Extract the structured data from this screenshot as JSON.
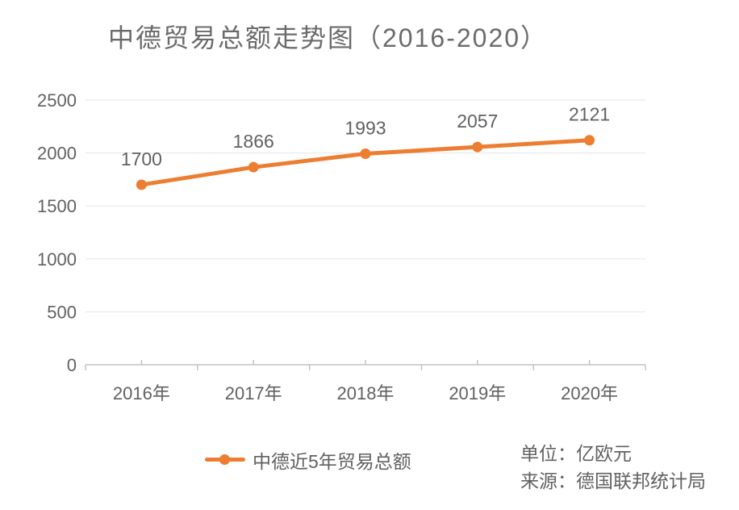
{
  "title": "中德贸易总额走势图（2016-2020）",
  "chart_data": {
    "type": "line",
    "title": "中德贸易总额走势图（2016-2020）",
    "categories": [
      "2016年",
      "2017年",
      "2018年",
      "2019年",
      "2020年"
    ],
    "series": [
      {
        "name": "中德近5年贸易总额",
        "values": [
          1700,
          1866,
          1993,
          2057,
          2121
        ]
      }
    ],
    "y_ticks": [
      0,
      500,
      1000,
      1500,
      2000,
      2500
    ],
    "ylim": [
      0,
      2500
    ],
    "xlabel": "",
    "ylabel": "",
    "grid": "horizontal",
    "legend_position": "bottom",
    "data_labels_shown": true
  },
  "legend": {
    "label": "中德近5年贸易总额",
    "marker": "line-with-dot"
  },
  "notes": {
    "unit": "单位：亿欧元",
    "source": "来源：德国联邦统计局"
  },
  "colors": {
    "accent": "#ed7d31",
    "gridline": "#e5e5e5",
    "axis": "#c3c3c3",
    "text": "#616161",
    "title_text": "#6b6b6b",
    "background": "#ffffff"
  }
}
